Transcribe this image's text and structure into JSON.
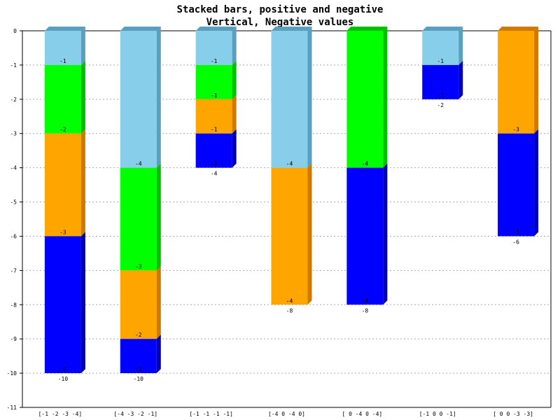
{
  "chart_data": {
    "type": "bar",
    "title": "Stacked bars, positive and negative",
    "subtitle": "Vertical, Negative values",
    "xlabel": "",
    "ylabel": "",
    "orientation": "vertical",
    "stacked": true,
    "grid": true,
    "ylim": [
      -11,
      0
    ],
    "yticks": [
      "0",
      "-1",
      "-2",
      "-3",
      "-4",
      "-5",
      "-6",
      "-7",
      "-8",
      "-9",
      "-10",
      "-11"
    ],
    "categories": [
      "[-1 -2 -3 -4]",
      "[-4 -3 -2 -1]",
      "[-1 -1 -1 -1]",
      "[-4  0 -4  0]",
      "[ 0 -4  0 -4]",
      "[-1  0  0 -1]",
      "[ 0  0 -3 -3]"
    ],
    "series": [
      {
        "color": "#87ceeb",
        "side_color": "#5aa0bc",
        "values": [
          -1,
          -4,
          -1,
          -4,
          0,
          -1,
          0
        ]
      },
      {
        "color": "#00ff00",
        "side_color": "#00c000",
        "values": [
          -2,
          -3,
          -1,
          0,
          -4,
          0,
          0
        ]
      },
      {
        "color": "#ffa500",
        "side_color": "#cc7a00",
        "values": [
          -3,
          -2,
          -1,
          -4,
          0,
          0,
          -3
        ]
      },
      {
        "color": "#0000ff",
        "side_color": "#0000b0",
        "values": [
          -4,
          -1,
          -1,
          0,
          -4,
          -1,
          -3
        ]
      }
    ],
    "totals": [
      -10,
      -10,
      -4,
      -8,
      -8,
      -2,
      -6
    ],
    "segment_labels": [
      [
        "-1",
        "-2",
        "-3",
        "-4"
      ],
      [
        "-4",
        "-3",
        "-2",
        "-1"
      ],
      [
        "-1",
        "-1",
        "-1",
        "-1"
      ],
      [
        "-4",
        "",
        "-4",
        ""
      ],
      [
        "",
        "-4",
        "",
        "-4"
      ],
      [
        "-1",
        "",
        "",
        "-1"
      ],
      [
        "",
        "",
        "-3",
        "-3"
      ]
    ],
    "total_labels": [
      "-10",
      "-10",
      "-4",
      "-8",
      "-8",
      "-2",
      "-6"
    ]
  }
}
